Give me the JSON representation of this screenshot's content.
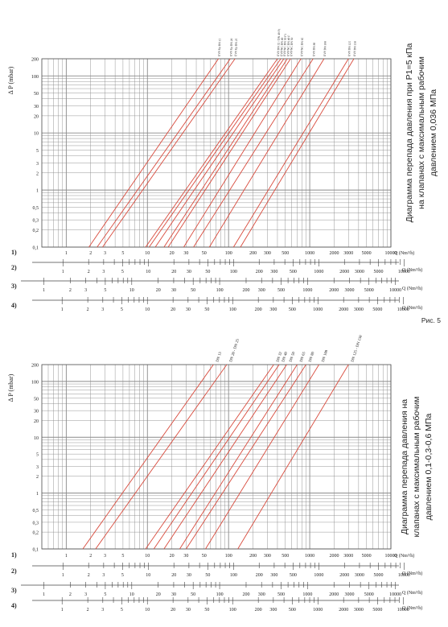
{
  "figure_caption": "Рис. 5",
  "row_labels": [
    "1)",
    "2)",
    "3)",
    "4)"
  ],
  "scale_unit": "Q (Nm³/h)",
  "colors": {
    "curve": "#d84a3c",
    "grid": "#8a8a8a",
    "text": "#222222"
  },
  "chart_data": [
    {
      "type": "line",
      "title": "Диаграмма перепада давления при P1=5 кПа на клапанах с максимальным рабочим давлением 0,036 МПа",
      "title_lines": [
        "Диаграмма перепада давления при P1=5 кПа",
        "на клапанах с максимальным рабочим",
        "давлением 0,036 МПа"
      ],
      "ylabel": "Δ P (mbar)",
      "xlabel": "Q (Nm³/h)",
      "x_scale": "log",
      "y_scale": "log",
      "xlim": [
        0.5,
        10000
      ],
      "ylim": [
        0.1,
        200
      ],
      "y_ticks": [
        "0,1",
        "0,2",
        "0,3",
        "0,5",
        "1",
        "2",
        "3",
        "5",
        "10",
        "20",
        "30",
        "50",
        "100",
        "200"
      ],
      "x_ticks": [
        "1",
        "2",
        "3",
        "5",
        "10",
        "20",
        "30",
        "50",
        "100",
        "200",
        "300",
        "500",
        "1000",
        "2000",
        "3000",
        "5000",
        "10000"
      ],
      "grid": true,
      "series": [
        {
          "name": "EVP Rp DN 15",
          "x": [
            1.9,
            75
          ]
        },
        {
          "name": "EVP Rp DN 20",
          "x": [
            2.4,
            105
          ]
        },
        {
          "name": "EVP Rp DN 25",
          "x": [
            2.8,
            120
          ]
        },
        {
          "name": "EVP DN 32 / DN 40 F1",
          "x": [
            9.5,
            400
          ]
        },
        {
          "name": "EVP/NC DN 40",
          "x": [
            10.5,
            440
          ]
        },
        {
          "name": "EVP/NC DN 50 F1",
          "x": [
            12.5,
            480
          ]
        },
        {
          "name": "EVP/NC DN 40 F",
          "x": [
            16,
            530
          ]
        },
        {
          "name": "EVP/NC DN 50",
          "x": [
            18,
            580
          ]
        },
        {
          "name": "EVP/NC DN 65",
          "x": [
            28,
            780
          ]
        },
        {
          "name": "EVP DN 80",
          "x": [
            37,
            1100
          ]
        },
        {
          "name": "EVP DN 100",
          "x": [
            58,
            1500
          ]
        },
        {
          "name": "EVP DN 125",
          "x": [
            115,
            3000
          ]
        },
        {
          "name": "EVP DN 150",
          "x": [
            140,
            3500
          ]
        }
      ],
      "scales": [
        {
          "label": "1)",
          "ticks": [
            "1",
            "2",
            "3",
            "5",
            "10",
            "20",
            "30",
            "50",
            "100",
            "200",
            "300",
            "500",
            "1000",
            "2000",
            "3000",
            "5000",
            "10000"
          ]
        },
        {
          "label": "2)",
          "ticks": [
            "1",
            "2",
            "3",
            "5",
            "10",
            "20",
            "30",
            "50",
            "100",
            "200",
            "300",
            "500",
            "1000",
            "2000",
            "3000",
            "5000",
            "10000"
          ]
        },
        {
          "label": "3)",
          "ticks": [
            "1",
            "2",
            "3",
            "5",
            "10",
            "20",
            "30",
            "50",
            "100",
            "200",
            "300",
            "500",
            "1000",
            "2000",
            "3000",
            "5000",
            "10000"
          ]
        },
        {
          "label": "4)",
          "ticks": [
            "1",
            "2",
            "3",
            "5",
            "10",
            "20",
            "30",
            "50",
            "100",
            "200",
            "300",
            "500",
            "1000",
            "2000",
            "3000",
            "5000",
            "10000"
          ]
        }
      ]
    },
    {
      "type": "line",
      "title": "Диаграмма перепада давления на клапанах с максимальным рабочим давлением 0,1-0,3-0,6 МПа",
      "title_lines": [
        "Диаграмма перепада давления на",
        "клапанах с максимальным рабочим",
        "давлением 0,1-0,3-0,6 МПа"
      ],
      "ylabel": "Δ P (mbar)",
      "xlabel": "Q (Nm³/h)",
      "x_scale": "log",
      "y_scale": "log",
      "xlim": [
        0.5,
        10000
      ],
      "ylim": [
        0.1,
        200
      ],
      "y_ticks": [
        "0,1",
        "0,2",
        "0,3",
        "0,5",
        "1",
        "2",
        "3",
        "5",
        "10",
        "20",
        "30",
        "50",
        "100",
        "200"
      ],
      "x_ticks": [
        "1",
        "2",
        "3",
        "5",
        "10",
        "20",
        "30",
        "50",
        "100",
        "200",
        "300",
        "500",
        "1000",
        "2000",
        "3000",
        "5000",
        "10000"
      ],
      "grid": true,
      "series": [
        {
          "name": "DN 15",
          "x": [
            1.6,
            65
          ]
        },
        {
          "name": "DN 20 - DN 25",
          "x": [
            2.3,
            95
          ]
        },
        {
          "name": "DN 32",
          "x": [
            9.5,
            360
          ]
        },
        {
          "name": "DN 40",
          "x": [
            12,
            420
          ]
        },
        {
          "name": "DN 50",
          "x": [
            16,
            520
          ]
        },
        {
          "name": "DN 65",
          "x": [
            25,
            700
          ]
        },
        {
          "name": "DN 80",
          "x": [
            30,
            900
          ]
        },
        {
          "name": "DN 100",
          "x": [
            52,
            1300
          ]
        },
        {
          "name": "DN 125 - DN 150",
          "x": [
            130,
            3000
          ]
        }
      ],
      "scales": [
        {
          "label": "1)",
          "ticks": [
            "1",
            "2",
            "3",
            "5",
            "10",
            "20",
            "30",
            "50",
            "100",
            "200",
            "300",
            "500",
            "1000",
            "2000",
            "3000",
            "5000",
            "10000"
          ]
        },
        {
          "label": "2)",
          "ticks": [
            "1",
            "2",
            "3",
            "5",
            "10",
            "20",
            "30",
            "50",
            "100",
            "200",
            "300",
            "500",
            "1000",
            "2000",
            "3000",
            "5000",
            "10000"
          ]
        },
        {
          "label": "3)",
          "ticks": [
            "1",
            "2",
            "3",
            "5",
            "10",
            "20",
            "30",
            "50",
            "100",
            "200",
            "300",
            "500",
            "1000",
            "2000",
            "3000",
            "5000",
            "10000"
          ]
        },
        {
          "label": "4)",
          "ticks": [
            "1",
            "2",
            "3",
            "5",
            "10",
            "20",
            "30",
            "50",
            "100",
            "200",
            "300",
            "500",
            "1000",
            "2000",
            "3000",
            "5000",
            "10000"
          ]
        }
      ]
    }
  ]
}
